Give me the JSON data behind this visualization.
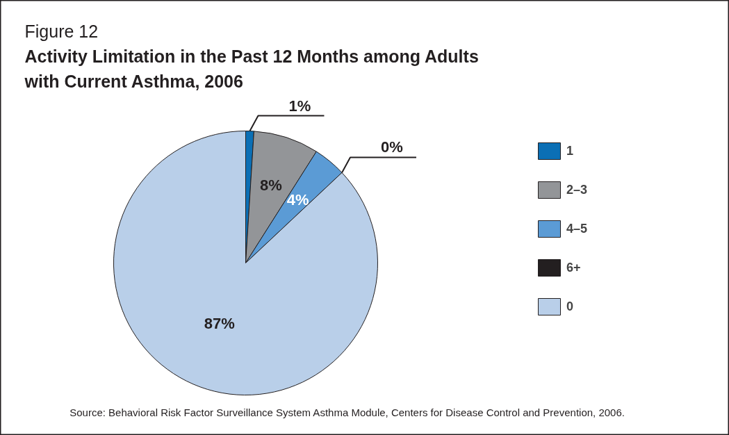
{
  "chart_data": {
    "type": "pie",
    "subtitle": "Figure 12",
    "title": "Activity Limitation in the Past 12 Months among Adults with Current Asthma, 2006",
    "categories": [
      "1",
      "2–3",
      "4–5",
      "6+",
      "0"
    ],
    "values": [
      1,
      8,
      4,
      0,
      87
    ],
    "value_labels": [
      "1%",
      "8%",
      "4%",
      "0%",
      "87%"
    ],
    "colors": [
      "#0b6fb5",
      "#939598",
      "#5b9bd5",
      "#231f20",
      "#b9cfe9"
    ],
    "legend": "right",
    "annotations": [
      "Source: Behavioral Risk Factor Surveillance System Asthma Module, Centers for Disease Control and Prevention, 2006."
    ]
  }
}
